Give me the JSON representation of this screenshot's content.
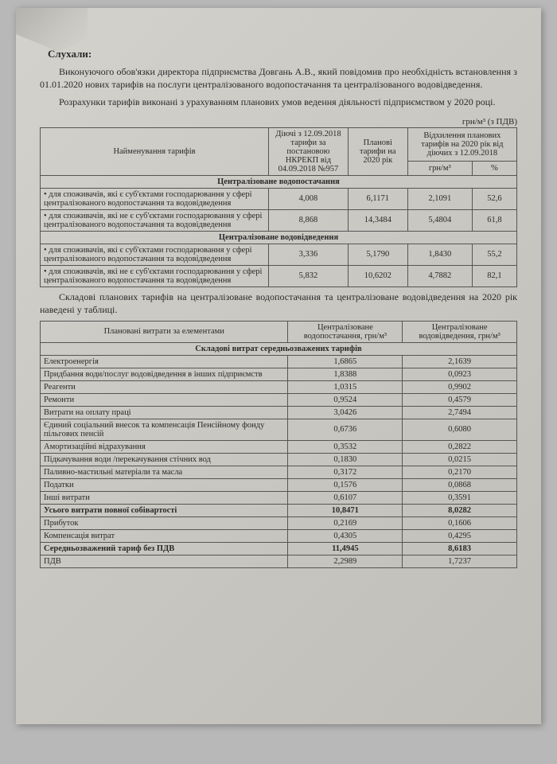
{
  "heading": "Слухали:",
  "para1": "Виконуючого обов'язки директора підприємства Довгань А.В., який повідомив про необхідність встановлення з 01.01.2020 нових тарифів на послуги централізованого водопостачання та централізованого водовідведення.",
  "para2": "Розрахунки тарифів виконані з урахуванням планових умов ведення діяльності підприємством у 2020 році.",
  "unit": "грн/м³ (з ПДВ)",
  "table1": {
    "head": {
      "name": "Найменування тарифів",
      "col1": "Діючі з 12.09.2018 тарифи за постановою НКРЕКП від 04.09.2018 №957",
      "col2": "Планові тарифи на 2020 рік",
      "col3": "Відхилення планових тарифів на 2020 рік від діючих з 12.09.2018",
      "sub1": "грн/м³",
      "sub2": "%"
    },
    "section1": "Централізоване водопостачання",
    "row1": {
      "name": "• для споживачів, які є суб'єктами господарювання у сфері централізованого водопостачання та водовідведення",
      "v1": "4,008",
      "v2": "6,1171",
      "v3": "2,1091",
      "v4": "52,6"
    },
    "row2": {
      "name": "• для споживачів, які не є суб'єктами господарювання у сфері централізованого водопостачання та водовідведення",
      "v1": "8,868",
      "v2": "14,3484",
      "v3": "5,4804",
      "v4": "61,8"
    },
    "section2": "Централізоване водовідведення",
    "row3": {
      "name": "• для споживачів, які є суб'єктами господарювання у сфері централізованого водопостачання та водовідведення",
      "v1": "3,336",
      "v2": "5,1790",
      "v3": "1,8430",
      "v4": "55,2"
    },
    "row4": {
      "name": "• для споживачів, які не є суб'єктами господарювання у сфері централізованого водопостачання та водовідведення",
      "v1": "5,832",
      "v2": "10,6202",
      "v3": "4,7882",
      "v4": "82,1"
    }
  },
  "para3": "Складові планових тарифів на централізоване водопостачання та централізоване водовідведення на 2020 рік наведені у таблиці.",
  "table2": {
    "head": {
      "name": "Плановані витрати за елементами",
      "col1": "Централізоване водопостачання, грн/м³",
      "col2": "Централізоване водовідведення, грн/м³"
    },
    "section": "Складові витрат середньозважених тарифів",
    "rows": [
      {
        "n": "Електроенергія",
        "a": "1,6865",
        "b": "2,1639"
      },
      {
        "n": "Придбання води/послуг водовідведення  в інших підприємств",
        "a": "1,8388",
        "b": "0,0923"
      },
      {
        "n": "Реагенти",
        "a": "1,0315",
        "b": "0,9902"
      },
      {
        "n": "Ремонти",
        "a": "0,9524",
        "b": "0,4579"
      },
      {
        "n": "Витрати на оплату праці",
        "a": "3,0426",
        "b": "2,7494"
      },
      {
        "n": "Єдиний соціальний внесок та компенсація Пенсійному фонду пільгових пенсій",
        "a": "0,6736",
        "b": "0,6080"
      },
      {
        "n": "Амортизаційні відрахування",
        "a": "0,3532",
        "b": "0,2822"
      },
      {
        "n": "Підкачування води /перекачування стічних вод",
        "a": "0,1830",
        "b": "0,0215"
      },
      {
        "n": "Паливно-мастильні матеріали та масла",
        "a": "0,3172",
        "b": "0,2170"
      },
      {
        "n": "Податки",
        "a": "0,1576",
        "b": "0,0868"
      },
      {
        "n": "Інші витрати",
        "a": "0,6107",
        "b": "0,3591"
      },
      {
        "n": "Усього витрати повної собівартості",
        "a": "10,8471",
        "b": "8,0282",
        "bold": true
      },
      {
        "n": "Прибуток",
        "a": "0,2169",
        "b": "0,1606"
      },
      {
        "n": "Компенсація витрат",
        "a": "0,4305",
        "b": "0,4295"
      },
      {
        "n": "Середньозважений тариф без ПДВ",
        "a": "11,4945",
        "b": "8,6183",
        "bold": true
      },
      {
        "n": "ПДВ",
        "a": "2,2989",
        "b": "1,7237"
      }
    ]
  }
}
